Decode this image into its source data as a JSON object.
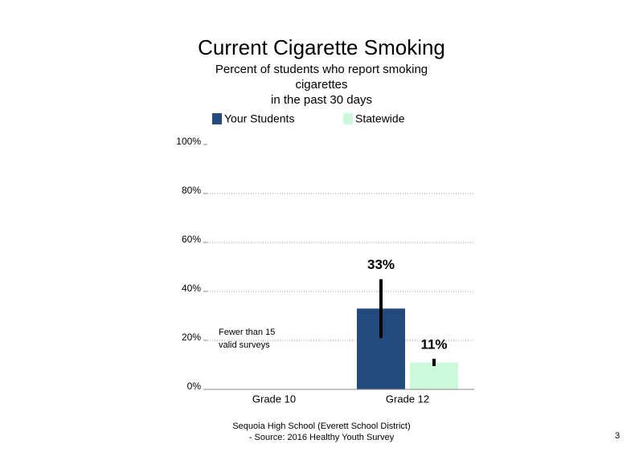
{
  "chart_data": {
    "type": "bar",
    "title": "Current Cigarette Smoking",
    "subtitle": [
      "Percent of students who report smoking",
      "cigarettes",
      "in the past 30 days"
    ],
    "categories": [
      "Grade 10",
      "Grade 12"
    ],
    "series": [
      {
        "name": "Your Students",
        "color": "#234a7d",
        "values": [
          null,
          33
        ],
        "errors": [
          null,
          12
        ],
        "value_labels": [
          null,
          "33%"
        ]
      },
      {
        "name": "Statewide",
        "color": "#ccf9dc",
        "values": [
          null,
          11
        ],
        "errors": [
          null,
          1.5
        ],
        "value_labels": [
          null,
          "11%"
        ]
      }
    ],
    "ylim": [
      0,
      100
    ],
    "yticks": [
      {
        "value": 0,
        "label": "0%"
      },
      {
        "value": 20,
        "label": "20%"
      },
      {
        "value": 40,
        "label": "40%"
      },
      {
        "value": 60,
        "label": "60%"
      },
      {
        "value": 80,
        "label": "80%"
      },
      {
        "value": 100,
        "label": "100%"
      }
    ],
    "grid": true,
    "annotation": [
      "Fewer than 15",
      "valid surveys"
    ],
    "footer": [
      "Sequoia High School (Everett School District)",
      "- Source: 2016 Healthy Youth Survey"
    ],
    "page_number": "3"
  }
}
